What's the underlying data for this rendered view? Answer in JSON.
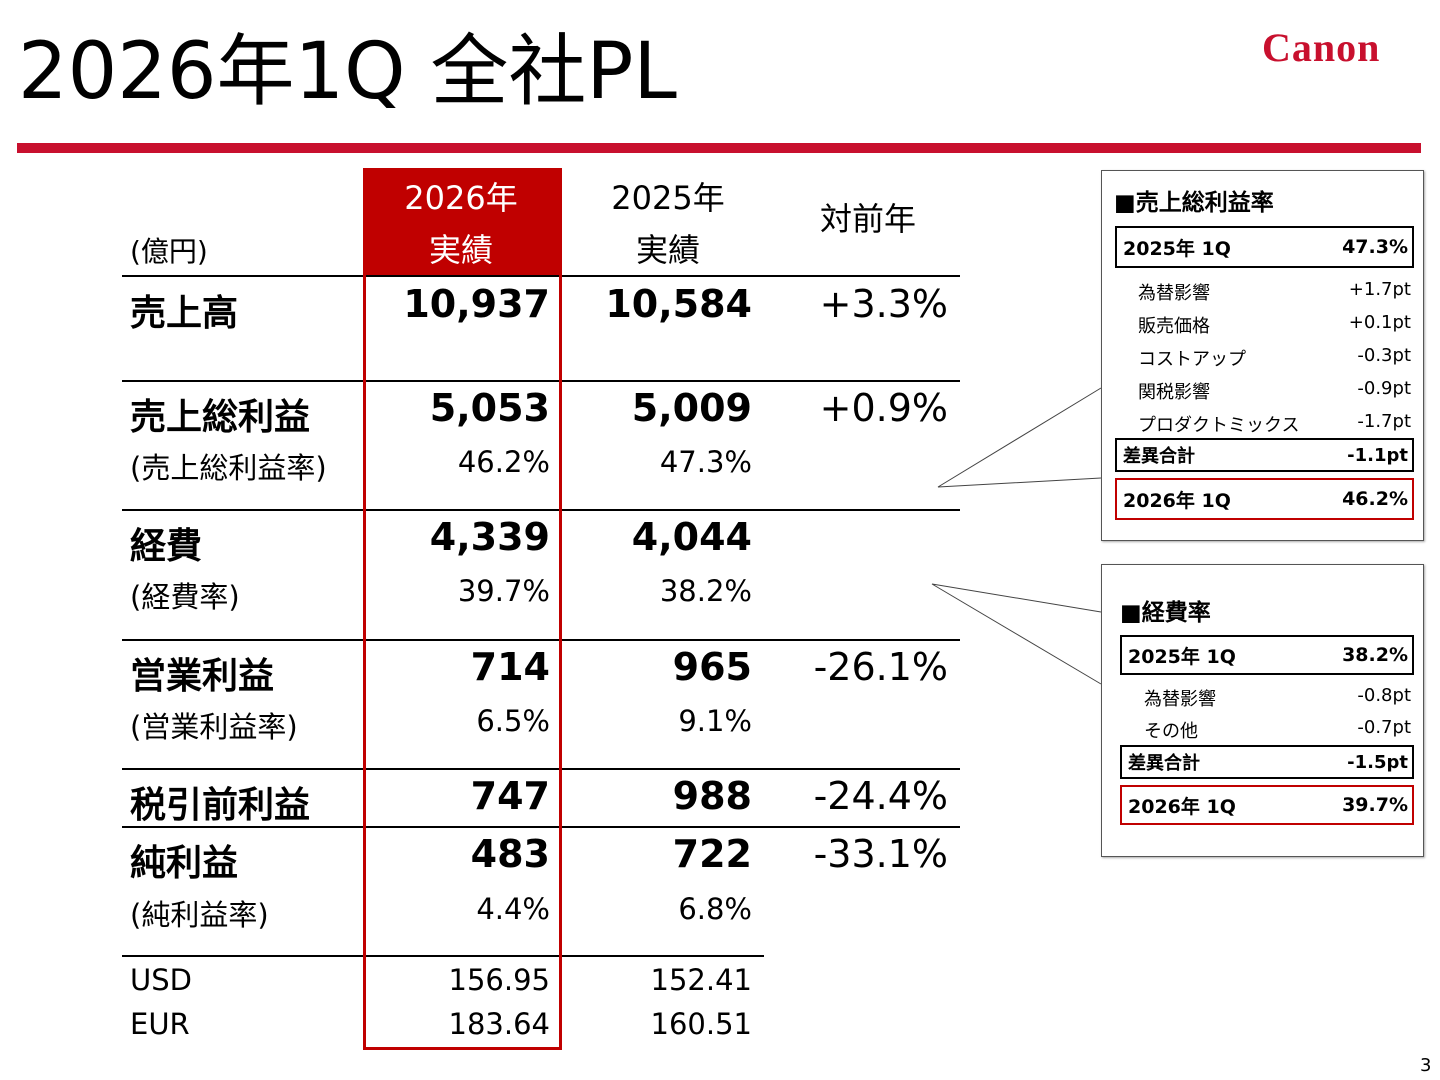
{
  "title": "2026年1Q 全社PL",
  "logo": "Canon",
  "page_number": "3",
  "header": {
    "unit": "(億円)",
    "col1": [
      "2026年",
      "実績"
    ],
    "col2": [
      "2025年",
      "実績"
    ],
    "col3": "対前年"
  },
  "rows": {
    "sales": {
      "label": "売上高",
      "v2026": "10,937",
      "v2025": "10,584",
      "yoy": "+3.3%"
    },
    "gross_profit": {
      "label": "売上総利益",
      "v2026": "5,053",
      "v2025": "5,009",
      "yoy": "+0.9%"
    },
    "gross_margin": {
      "label": "(売上総利益率)",
      "v2026": "46.2%",
      "v2025": "47.3%"
    },
    "expenses": {
      "label": "経費",
      "v2026": "4,339",
      "v2025": "4,044"
    },
    "expense_ratio": {
      "label": "(経費率)",
      "v2026": "39.7%",
      "v2025": "38.2%"
    },
    "operating_profit": {
      "label": "営業利益",
      "v2026": "714",
      "v2025": "965",
      "yoy": "-26.1%"
    },
    "operating_margin": {
      "label": "(営業利益率)",
      "v2026": "6.5%",
      "v2025": "9.1%"
    },
    "pretax_profit": {
      "label": "税引前利益",
      "v2026": "747",
      "v2025": "988",
      "yoy": "-24.4%"
    },
    "net_profit": {
      "label": "純利益",
      "v2026": "483",
      "v2025": "722",
      "yoy": "-33.1%"
    },
    "net_margin": {
      "label": "(純利益率)",
      "v2026": "4.4%",
      "v2025": "6.8%"
    },
    "usd": {
      "label": "USD",
      "v2026": "156.95",
      "v2025": "152.41"
    },
    "eur": {
      "label": "EUR",
      "v2026": "183.64",
      "v2025": "160.51"
    }
  },
  "gross_margin_box": {
    "title": "■売上総利益率",
    "start": {
      "label": "2025年 1Q",
      "value": "47.3%"
    },
    "items": [
      {
        "label": "為替影響",
        "value": "+1.7pt"
      },
      {
        "label": "販売価格",
        "value": "+0.1pt"
      },
      {
        "label": "コストアップ",
        "value": "-0.3pt"
      },
      {
        "label": "関税影響",
        "value": "-0.9pt"
      },
      {
        "label": "プロダクトミックス",
        "value": "-1.7pt"
      }
    ],
    "total": {
      "label": "差異合計",
      "value": "-1.1pt"
    },
    "end": {
      "label": "2026年 1Q",
      "value": "46.2%"
    }
  },
  "expense_ratio_box": {
    "title": "■経費率",
    "start": {
      "label": "2025年 1Q",
      "value": "38.2%"
    },
    "items": [
      {
        "label": "為替影響",
        "value": "-0.8pt"
      },
      {
        "label": "その他",
        "value": "-0.7pt"
      }
    ],
    "total": {
      "label": "差異合計",
      "value": "-1.5pt"
    },
    "end": {
      "label": "2026年 1Q",
      "value": "39.7%"
    }
  },
  "colors": {
    "accent": "#c8102e",
    "header_fill": "#c00000"
  }
}
